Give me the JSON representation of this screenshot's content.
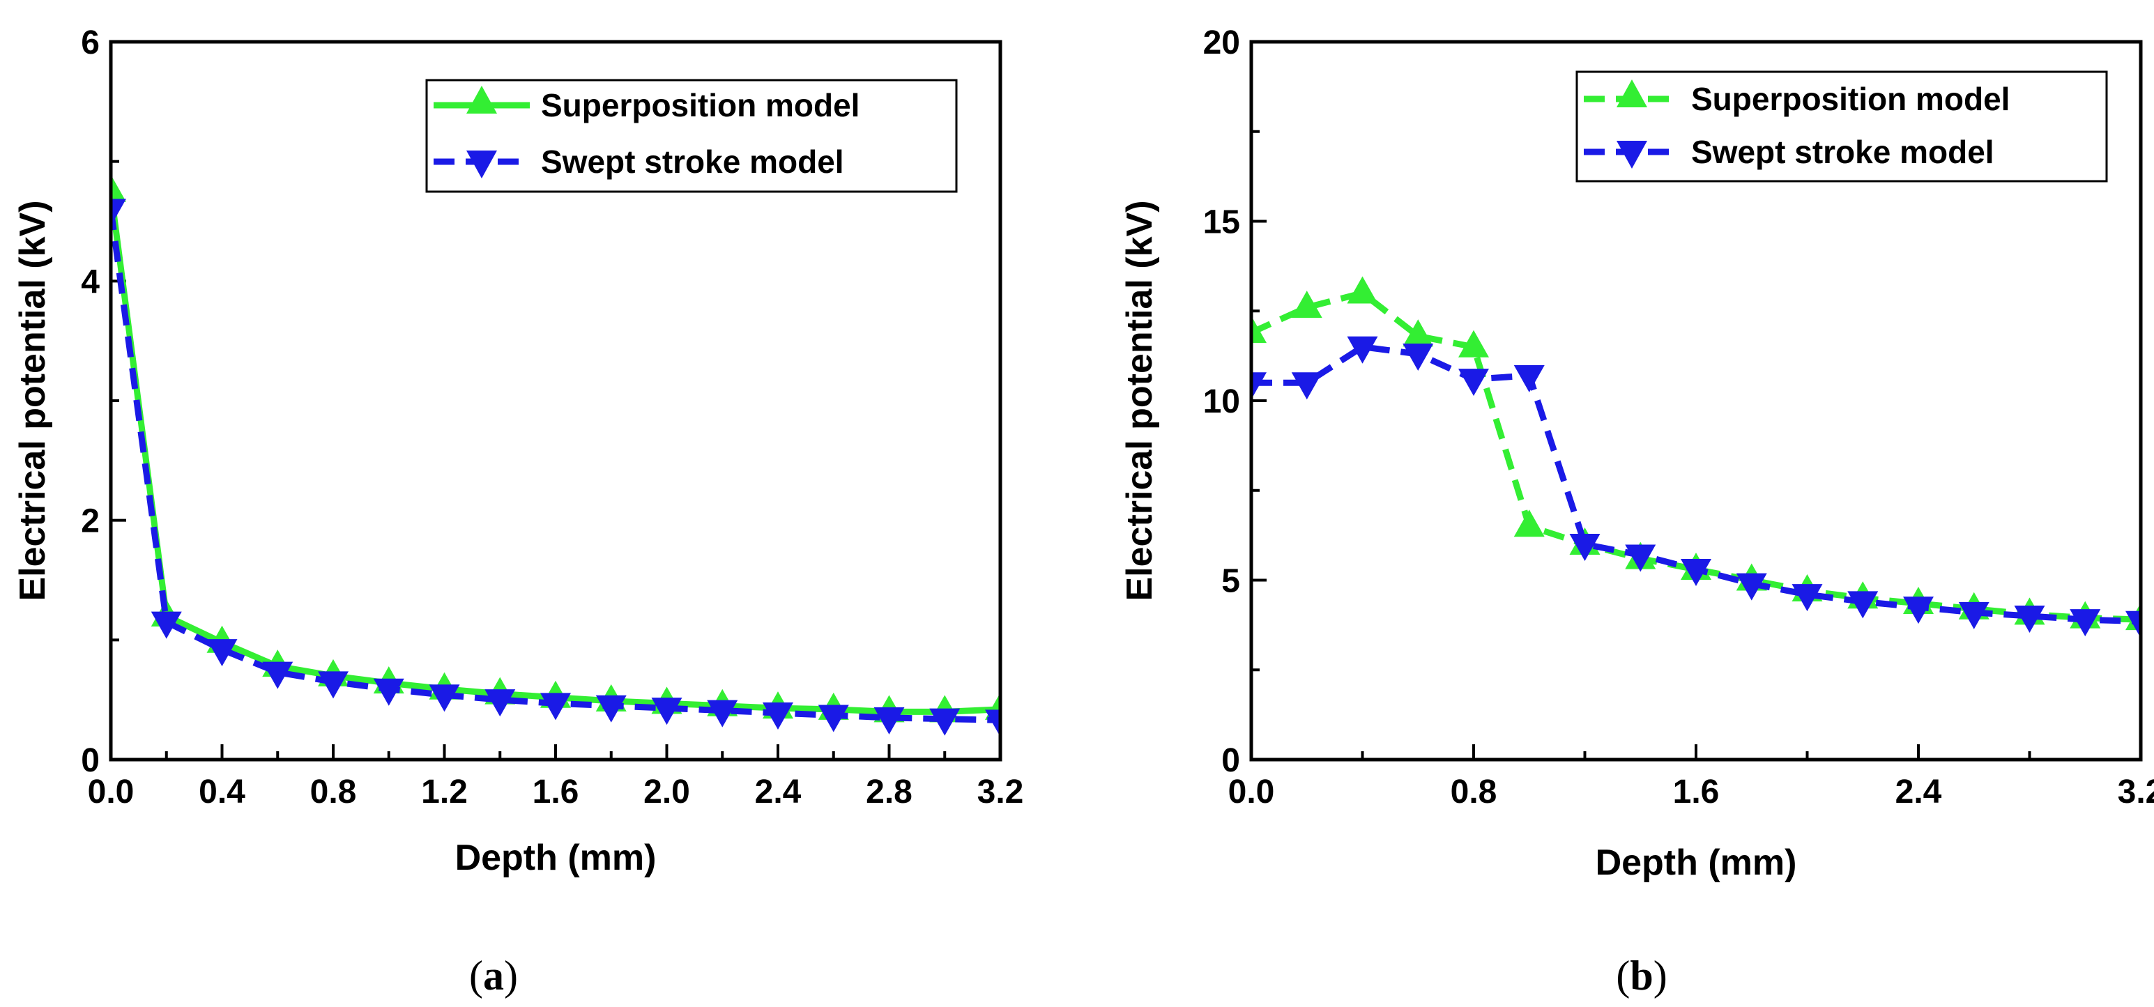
{
  "chart_data": [
    {
      "type": "line",
      "caption": "a",
      "xlabel": "Depth (mm)",
      "ylabel": "Electrical potential (kV)",
      "xlim": [
        0,
        3.2
      ],
      "ylim": [
        0,
        6
      ],
      "xticks": [
        0.0,
        0.4,
        0.8,
        1.2,
        1.6,
        2.0,
        2.4,
        2.8,
        3.2
      ],
      "xtick_labels": [
        "0.0",
        "0.4",
        "0.8",
        "1.2",
        "1.6",
        "2.0",
        "2.4",
        "2.8",
        "3.2"
      ],
      "yticks": [
        0,
        2,
        4,
        6
      ],
      "ytick_labels": [
        "0",
        "2",
        "4",
        "6"
      ],
      "legend_position": "top-right",
      "series": [
        {
          "name": "Superposition model",
          "color": "#33ee33",
          "marker": "triangle-up",
          "dash": "solid",
          "x": [
            0.0,
            0.2,
            0.4,
            0.6,
            0.8,
            1.0,
            1.2,
            1.4,
            1.6,
            1.8,
            2.0,
            2.2,
            2.4,
            2.6,
            2.8,
            3.0,
            3.2
          ],
          "y": [
            4.75,
            1.2,
            0.98,
            0.78,
            0.7,
            0.64,
            0.59,
            0.55,
            0.52,
            0.49,
            0.47,
            0.45,
            0.43,
            0.42,
            0.4,
            0.4,
            0.42
          ]
        },
        {
          "name": "Swept stroke model",
          "color": "#1a1ae6",
          "marker": "triangle-down",
          "dash": "dashed",
          "x": [
            0.0,
            0.2,
            0.4,
            0.6,
            0.8,
            1.0,
            1.2,
            1.4,
            1.6,
            1.8,
            2.0,
            2.2,
            2.4,
            2.6,
            2.8,
            3.0,
            3.2
          ],
          "y": [
            4.6,
            1.15,
            0.92,
            0.73,
            0.65,
            0.59,
            0.54,
            0.5,
            0.47,
            0.45,
            0.43,
            0.41,
            0.39,
            0.37,
            0.35,
            0.34,
            0.33
          ]
        }
      ]
    },
    {
      "type": "line",
      "caption": "b",
      "xlabel": "Depth (mm)",
      "ylabel": "Electrical potential (kV)",
      "xlim": [
        0,
        3.2
      ],
      "ylim": [
        0,
        20
      ],
      "xticks": [
        0.0,
        0.8,
        1.6,
        2.4,
        3.2
      ],
      "xtick_labels": [
        "0.0",
        "0.8",
        "1.6",
        "2.4",
        "3.2"
      ],
      "yticks": [
        0,
        5,
        10,
        15,
        20
      ],
      "ytick_labels": [
        "0",
        "5",
        "10",
        "15",
        "20"
      ],
      "legend_position": "top-right",
      "series": [
        {
          "name": "Superposition model",
          "color": "#33ee33",
          "marker": "triangle-up",
          "dash": "dashed",
          "x": [
            0.0,
            0.2,
            0.4,
            0.6,
            0.8,
            1.0,
            1.2,
            1.4,
            1.6,
            1.8,
            2.0,
            2.2,
            2.4,
            2.6,
            2.8,
            3.0,
            3.2
          ],
          "y": [
            11.9,
            12.6,
            13.0,
            11.8,
            11.5,
            6.5,
            6.0,
            5.6,
            5.3,
            5.0,
            4.7,
            4.5,
            4.35,
            4.2,
            4.05,
            3.95,
            3.9
          ]
        },
        {
          "name": "Swept stroke model",
          "color": "#1a1ae6",
          "marker": "triangle-down",
          "dash": "dashed",
          "x": [
            0.0,
            0.2,
            0.4,
            0.6,
            0.8,
            1.0,
            1.2,
            1.4,
            1.6,
            1.8,
            2.0,
            2.2,
            2.4,
            2.6,
            2.8,
            3.0,
            3.2
          ],
          "y": [
            10.5,
            10.5,
            11.5,
            11.3,
            10.6,
            10.7,
            6.0,
            5.7,
            5.3,
            4.9,
            4.6,
            4.4,
            4.25,
            4.1,
            4.0,
            3.9,
            3.85
          ]
        }
      ]
    }
  ]
}
